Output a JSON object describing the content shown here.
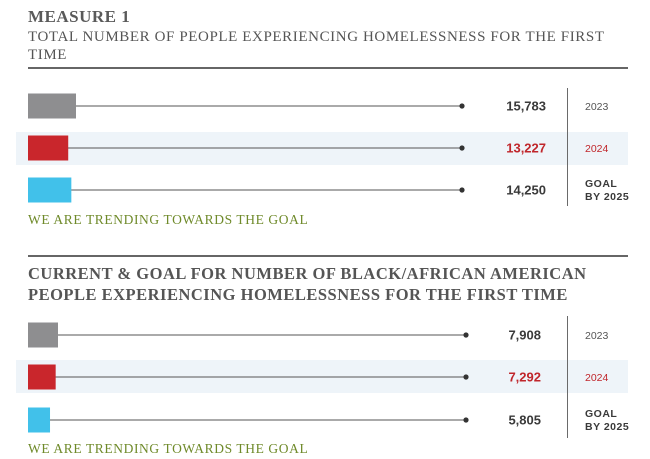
{
  "header": {
    "title": "MEASURE 1",
    "subtitle": "TOTAL NUMBER OF PEOPLE EXPERIENCING HOMELESSNESS FOR THE FIRST TIME"
  },
  "section2": {
    "title": "CURRENT & GOAL FOR NUMBER OF BLACK/AFRICAN AMERICAN PEOPLE EXPERIENCING HOMELESSNESS FOR THE FIRST TIME"
  },
  "colors": {
    "gray": "#8e8e90",
    "red": "#c9262c",
    "blue": "#41c1ea",
    "highlight_text": "#c0262b",
    "trend_text": "#6f8a2a"
  },
  "chart_data": [
    {
      "type": "bar",
      "title": "TOTAL NUMBER OF PEOPLE EXPERIENCING HOMELESSNESS FOR THE FIRST TIME",
      "categories": [
        "2023",
        "2024",
        "GOAL BY 2025"
      ],
      "values": [
        15783,
        13227,
        14250
      ],
      "value_labels": [
        "15,783",
        "13,227",
        "14,250"
      ],
      "category_lines": [
        [
          "2023"
        ],
        [
          "2024"
        ],
        [
          "GOAL",
          "BY 2025"
        ]
      ],
      "colors": [
        "gray",
        "red",
        "blue"
      ],
      "highlight_index": 1,
      "note": "WE ARE TRENDING TOWARDS THE GOAL"
    },
    {
      "type": "bar",
      "title": "CURRENT & GOAL FOR NUMBER OF BLACK/AFRICAN AMERICAN PEOPLE EXPERIENCING HOMELESSNESS FOR THE FIRST TIME",
      "categories": [
        "2023",
        "2024",
        "GOAL BY 2025"
      ],
      "values": [
        7908,
        7292,
        5805
      ],
      "value_labels": [
        "7,908",
        "7,292",
        "5,805"
      ],
      "category_lines": [
        [
          "2023"
        ],
        [
          "2024"
        ],
        [
          "GOAL",
          "BY 2025"
        ]
      ],
      "colors": [
        "gray",
        "red",
        "blue"
      ],
      "highlight_index": 1,
      "note": "WE ARE TRENDING TOWARDS THE GOAL"
    }
  ]
}
